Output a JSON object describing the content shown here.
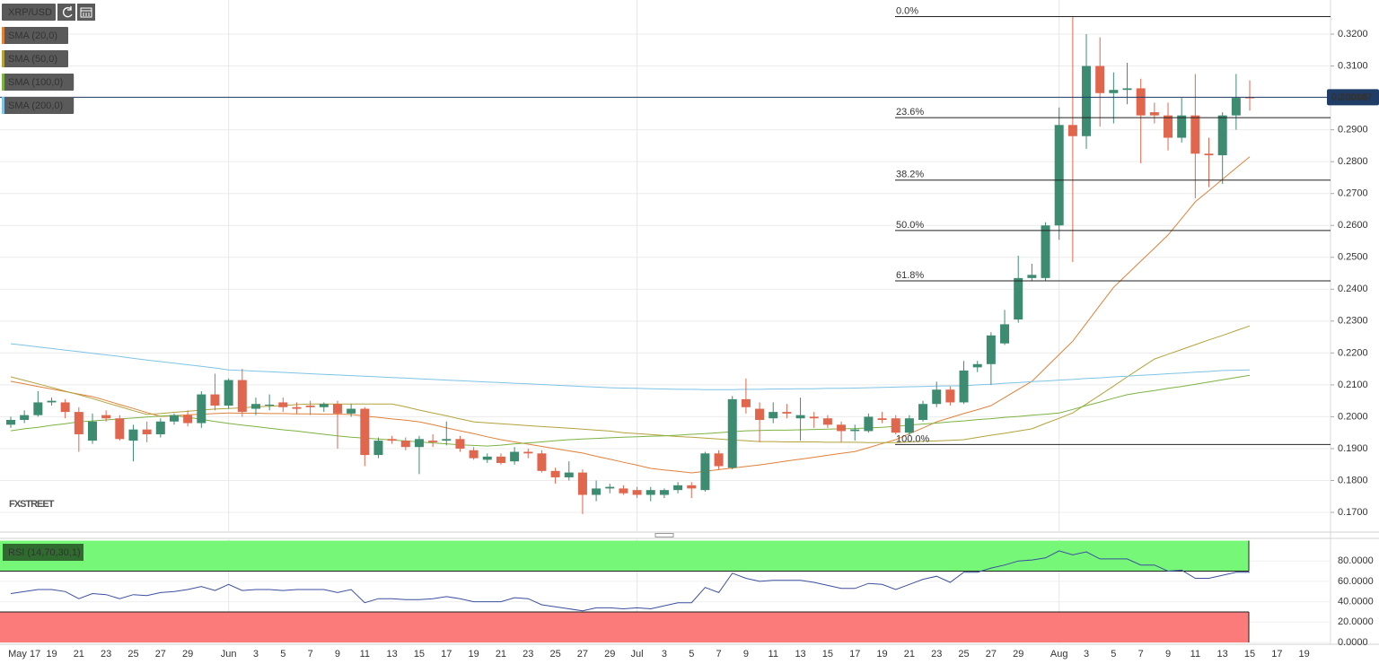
{
  "chart_data": {
    "type": "candlestick",
    "title": "XRP/USD",
    "watermark": "FXSTREET",
    "categories": [
      null,
      "May 17",
      null,
      "19",
      null,
      "21",
      null,
      "23",
      null,
      "25",
      null,
      "27",
      null,
      "29",
      null,
      null,
      "Jun",
      null,
      "3",
      null,
      "5",
      null,
      "7",
      null,
      "9",
      null,
      "11",
      null,
      "13",
      null,
      "15",
      null,
      "17",
      null,
      "19",
      null,
      "21",
      null,
      "23",
      null,
      "25",
      null,
      "27",
      null,
      "29",
      null,
      "Jul",
      null,
      "3",
      null,
      "5",
      null,
      "7",
      null,
      "9",
      null,
      "11",
      null,
      "13",
      null,
      "15",
      null,
      "17",
      null,
      "19",
      null,
      "21",
      null,
      "23",
      null,
      "25",
      null,
      "27",
      null,
      "29",
      null,
      null,
      "Aug",
      null,
      "3",
      null,
      "5",
      null,
      "7",
      null,
      "9",
      null,
      "11",
      null,
      "13",
      null,
      "15",
      null,
      "17",
      null,
      "19"
    ],
    "open": [
      0.1975,
      0.199,
      0.2005,
      0.2045,
      0.2045,
      0.2015,
      0.1925,
      0.2005,
      0.1995,
      0.1925,
      0.196,
      0.1945,
      0.1985,
      0.2005,
      0.198,
      0.207,
      0.2035,
      0.2115,
      0.2025,
      0.2035,
      0.2045,
      0.203,
      0.2035,
      0.203,
      0.204,
      0.201,
      0.2025,
      0.188,
      0.193,
      0.1925,
      0.1905,
      0.1925,
      0.1925,
      0.193,
      0.1895,
      0.1865,
      0.1875,
      0.186,
      0.189,
      0.1885,
      0.183,
      0.181,
      0.1825,
      0.1755,
      0.1775,
      0.1775,
      0.177,
      0.1755,
      0.1755,
      0.177,
      0.1785,
      0.177,
      0.1885,
      0.184,
      0.2055,
      0.2025,
      0.1995,
      0.2015,
      0.1995,
      0.2,
      0.1995,
      0.1975,
      0.1955,
      0.1955,
      0.1995,
      0.1995,
      0.195,
      0.199,
      0.204,
      0.2085,
      0.2045,
      0.2155,
      0.2165,
      0.223,
      0.2305,
      0.2435,
      0.2435,
      0.26,
      0.2915,
      0.288,
      0.31,
      0.3015,
      0.3025,
      0.303,
      0.2955,
      0.2945,
      0.2875,
      0.2945,
      0.2825,
      0.282,
      0.2945,
      0.3002,
      null,
      null,
      null,
      null
    ],
    "high": [
      0.2,
      0.202,
      0.208,
      0.206,
      0.2055,
      0.203,
      0.201,
      0.202,
      0.2005,
      0.1975,
      0.1985,
      0.1995,
      0.201,
      0.202,
      0.208,
      0.2135,
      0.212,
      0.215,
      0.206,
      0.207,
      0.206,
      0.2045,
      0.205,
      0.2045,
      0.205,
      0.204,
      0.203,
      0.1935,
      0.194,
      0.1935,
      0.194,
      0.1945,
      0.1985,
      0.194,
      0.1905,
      0.1885,
      0.1885,
      0.1905,
      0.19,
      0.1895,
      0.184,
      0.186,
      0.1835,
      0.18,
      0.179,
      0.1785,
      0.178,
      0.178,
      0.1775,
      0.1795,
      0.1795,
      0.189,
      0.1895,
      0.2065,
      0.212,
      0.2045,
      0.2045,
      0.204,
      0.206,
      0.2015,
      0.2005,
      0.1985,
      0.1975,
      0.201,
      0.2015,
      0.2005,
      0.2005,
      0.205,
      0.211,
      0.2095,
      0.2175,
      0.2175,
      0.2265,
      0.2335,
      0.2505,
      0.248,
      0.261,
      0.297,
      0.3255,
      0.32,
      0.319,
      0.308,
      0.311,
      0.306,
      0.2985,
      0.2985,
      0.3,
      0.3075,
      0.2875,
      0.2955,
      0.3075,
      0.3055,
      null,
      null,
      null,
      null
    ],
    "low": [
      0.1965,
      0.198,
      0.2,
      0.2035,
      0.1995,
      0.189,
      0.1915,
      0.1985,
      0.1925,
      0.186,
      0.192,
      0.1935,
      0.1975,
      0.197,
      0.1965,
      0.202,
      0.2025,
      0.2,
      0.2005,
      0.202,
      0.2015,
      0.201,
      0.2005,
      0.2015,
      0.19,
      0.2,
      0.1845,
      0.187,
      0.1915,
      0.1895,
      0.182,
      0.1905,
      0.191,
      0.189,
      0.1865,
      0.1855,
      0.185,
      0.185,
      0.187,
      0.1825,
      0.179,
      0.18,
      0.1695,
      0.1735,
      0.176,
      0.1755,
      0.1745,
      0.1735,
      0.1745,
      0.176,
      0.1745,
      0.1765,
      0.1835,
      0.1835,
      0.201,
      0.192,
      0.198,
      0.1995,
      0.1925,
      0.1965,
      0.1965,
      0.192,
      0.1925,
      0.195,
      0.198,
      0.1945,
      0.194,
      0.1985,
      0.203,
      0.2035,
      0.204,
      0.214,
      0.21,
      0.2225,
      0.2295,
      0.2425,
      0.2425,
      0.2555,
      0.2485,
      0.284,
      0.291,
      0.292,
      0.298,
      0.2795,
      0.292,
      0.2835,
      0.286,
      0.2685,
      0.272,
      0.273,
      0.29,
      0.296,
      null,
      null,
      null,
      null
    ],
    "close": [
      0.199,
      0.2005,
      0.2045,
      0.205,
      0.2015,
      0.1945,
      0.1985,
      0.1995,
      0.193,
      0.196,
      0.1945,
      0.1985,
      0.2005,
      0.198,
      0.207,
      0.2035,
      0.2115,
      0.2015,
      0.204,
      0.2038,
      0.203,
      0.2025,
      0.203,
      0.204,
      0.201,
      0.2025,
      0.188,
      0.1925,
      0.1925,
      0.1905,
      0.193,
      0.192,
      0.193,
      0.19,
      0.187,
      0.1875,
      0.1855,
      0.189,
      0.1885,
      0.183,
      0.181,
      0.1825,
      0.1755,
      0.1775,
      0.178,
      0.176,
      0.1755,
      0.177,
      0.177,
      0.1785,
      0.1775,
      0.1885,
      0.1845,
      0.2055,
      0.203,
      0.199,
      0.2015,
      0.201,
      0.2005,
      0.1995,
      0.1975,
      0.1955,
      0.196,
      0.2,
      0.199,
      0.195,
      0.1995,
      0.204,
      0.2085,
      0.2045,
      0.2145,
      0.2165,
      0.2255,
      0.229,
      0.2435,
      0.2445,
      0.26,
      0.2915,
      0.288,
      0.31,
      0.3015,
      0.3025,
      0.303,
      0.2945,
      0.2945,
      0.2875,
      0.2945,
      0.2825,
      0.282,
      0.2945,
      0.3,
      0.300187,
      null,
      null,
      null,
      null
    ],
    "up_color": "#3d8c72",
    "down_color": "#e0664e",
    "ylim": [
      0.1641,
      0.3307
    ],
    "yticks": [
      {
        "value": 0.17,
        "label": "0.1700"
      },
      {
        "value": 0.18,
        "label": "0.1800"
      },
      {
        "value": 0.19,
        "label": "0.1900"
      },
      {
        "value": 0.2,
        "label": "0.2000"
      },
      {
        "value": 0.21,
        "label": "0.2100"
      },
      {
        "value": 0.22,
        "label": "0.2200"
      },
      {
        "value": 0.23,
        "label": "0.2300"
      },
      {
        "value": 0.24,
        "label": "0.2400"
      },
      {
        "value": 0.25,
        "label": "0.2500"
      },
      {
        "value": 0.26,
        "label": "0.2600"
      },
      {
        "value": 0.27,
        "label": "0.2700"
      },
      {
        "value": 0.28,
        "label": "0.2800"
      },
      {
        "value": 0.29,
        "label": "0.2900"
      },
      {
        "value": 0.3,
        "label": "0.3000"
      },
      {
        "value": 0.31,
        "label": "0.3100"
      },
      {
        "value": 0.32,
        "label": "0.3200"
      }
    ],
    "grid": true,
    "price_line_color": "#1f3d66",
    "series": [
      {
        "name": "SMA (20,0)",
        "color": "#e0813a",
        "values": [
          0.2111,
          0.2103,
          0.2095,
          0.2087,
          0.2079,
          0.2071,
          0.2063,
          0.2051,
          0.2038,
          0.2026,
          0.2013,
          0.2001,
          0.2003,
          0.2006,
          0.2008,
          0.201,
          0.2012,
          0.2011,
          0.2011,
          0.201,
          0.201,
          0.2009,
          0.2009,
          0.2008,
          0.2008,
          0.2007,
          0.2002,
          0.1998,
          0.1993,
          0.1989,
          0.1984,
          0.1975,
          0.1965,
          0.1956,
          0.1947,
          0.1937,
          0.1928,
          0.1921,
          0.1914,
          0.1907,
          0.19,
          0.1893,
          0.1886,
          0.1876,
          0.1867,
          0.1857,
          0.1848,
          0.1838,
          0.1833,
          0.1829,
          0.1824,
          0.1829,
          0.1834,
          0.1839,
          0.1844,
          0.1849,
          0.1855,
          0.1861,
          0.1867,
          0.1873,
          0.1879,
          0.1885,
          0.1891,
          0.1903,
          0.1916,
          0.1928,
          0.1947,
          0.1965,
          0.1984,
          0.1997,
          0.201,
          0.2022,
          0.2035,
          0.206,
          0.2086,
          0.2111,
          0.2153,
          0.2195,
          0.2237,
          0.2293,
          0.235,
          0.2406,
          0.2447,
          0.2488,
          0.2529,
          0.257,
          0.2622,
          0.2674,
          0.2709,
          0.2745,
          0.278,
          0.2815,
          null,
          null,
          null,
          null
        ]
      },
      {
        "name": "SMA (50,0)",
        "color": "#b3a33b",
        "values": [
          0.2125,
          0.2114,
          0.2103,
          0.2092,
          0.208,
          0.2069,
          0.2057,
          0.2044,
          0.2032,
          0.2019,
          0.2007,
          0.201,
          0.2014,
          0.2017,
          0.2021,
          0.2024,
          0.2026,
          0.2028,
          0.2031,
          0.2033,
          0.2035,
          0.2038,
          0.204,
          0.204,
          0.204,
          0.204,
          0.204,
          0.204,
          0.204,
          0.2031,
          0.2021,
          0.2012,
          0.2003,
          0.1993,
          0.1984,
          0.1981,
          0.1978,
          0.1975,
          0.1972,
          0.1969,
          0.1967,
          0.1964,
          0.1961,
          0.1958,
          0.1955,
          0.195,
          0.1947,
          0.1944,
          0.1941,
          0.1938,
          0.1936,
          0.1933,
          0.193,
          0.1927,
          0.1925,
          0.1922,
          0.1922,
          0.1921,
          0.1921,
          0.1921,
          0.192,
          0.192,
          0.192,
          0.1919,
          0.1919,
          0.1919,
          0.1921,
          0.1923,
          0.1924,
          0.1926,
          0.1928,
          0.1935,
          0.1942,
          0.1948,
          0.1955,
          0.1962,
          0.1979,
          0.1995,
          0.2012,
          0.204,
          0.2068,
          0.2096,
          0.2125,
          0.2153,
          0.2181,
          0.2196,
          0.2211,
          0.2226,
          0.2241,
          0.2255,
          0.227,
          0.2285,
          null,
          null,
          null,
          null
        ]
      },
      {
        "name": "SMA (100,0)",
        "color": "#7cb342",
        "values": [
          0.1956,
          0.1962,
          0.1967,
          0.1973,
          0.1978,
          0.1984,
          0.1987,
          0.199,
          0.1993,
          0.1996,
          0.1999,
          0.2002,
          0.2004,
          0.1998,
          0.1992,
          0.1985,
          0.1979,
          0.1974,
          0.1969,
          0.1964,
          0.1959,
          0.1955,
          0.195,
          0.1945,
          0.194,
          0.1936,
          0.1933,
          0.193,
          0.1927,
          0.1924,
          0.1921,
          0.1918,
          0.1915,
          0.1912,
          0.191,
          0.1908,
          0.1911,
          0.1915,
          0.1918,
          0.1921,
          0.1925,
          0.1928,
          0.193,
          0.1932,
          0.1934,
          0.1936,
          0.1937,
          0.1939,
          0.194,
          0.1942,
          0.1945,
          0.1947,
          0.195,
          0.1953,
          0.1956,
          0.1957,
          0.1958,
          0.1958,
          0.1959,
          0.196,
          0.1961,
          0.1962,
          0.1963,
          0.1965,
          0.1967,
          0.197,
          0.1974,
          0.1977,
          0.198,
          0.1984,
          0.1987,
          0.1991,
          0.1994,
          0.1998,
          0.2001,
          0.2005,
          0.2008,
          0.2012,
          0.2023,
          0.2035,
          0.2046,
          0.2058,
          0.2069,
          0.2076,
          0.2082,
          0.2089,
          0.2095,
          0.2102,
          0.2109,
          0.2116,
          0.2123,
          0.213,
          null,
          null,
          null,
          null
        ]
      },
      {
        "name": "SMA (200,0)",
        "color": "#7ec4e4",
        "values": [
          0.2229,
          0.2224,
          0.2219,
          0.2214,
          0.2209,
          0.2204,
          0.2199,
          0.2194,
          0.2189,
          0.2183,
          0.2178,
          0.2173,
          0.2168,
          0.2163,
          0.2158,
          0.2153,
          0.2147,
          0.2145,
          0.2143,
          0.2141,
          0.2139,
          0.2137,
          0.2135,
          0.2133,
          0.2131,
          0.2129,
          0.2127,
          0.2125,
          0.2123,
          0.2121,
          0.2119,
          0.2117,
          0.2115,
          0.2113,
          0.2111,
          0.2109,
          0.2107,
          0.2105,
          0.2103,
          0.2101,
          0.2099,
          0.2097,
          0.2095,
          0.2093,
          0.2091,
          0.209,
          0.2089,
          0.2088,
          0.2087,
          0.2086,
          0.2086,
          0.2085,
          0.2085,
          0.2085,
          0.2086,
          0.2086,
          0.2087,
          0.2087,
          0.2088,
          0.2088,
          0.2089,
          0.2089,
          0.209,
          0.2091,
          0.2092,
          0.2093,
          0.2094,
          0.2095,
          0.2096,
          0.2097,
          0.2097,
          0.21,
          0.2102,
          0.2105,
          0.2107,
          0.211,
          0.2112,
          0.2115,
          0.2117,
          0.212,
          0.2122,
          0.2125,
          0.2127,
          0.213,
          0.2132,
          0.2135,
          0.2137,
          0.214,
          0.2142,
          0.2145,
          0.2146,
          0.2147,
          null,
          null,
          null,
          null
        ]
      }
    ],
    "fibonacci": [
      {
        "label": "0.0%",
        "value": 0.3255
      },
      {
        "label": "23.6%",
        "value": 0.2938
      },
      {
        "label": "38.2%",
        "value": 0.2742
      },
      {
        "label": "50.0%",
        "value": 0.2584
      },
      {
        "label": "61.8%",
        "value": 0.2426
      },
      {
        "label": "100.0%",
        "value": 0.1913
      }
    ],
    "indicator": {
      "type": "line",
      "name": "RSI (14,70,30,1)",
      "color": "#3b4fa0",
      "values": [
        48,
        50,
        52,
        52,
        50,
        43,
        48,
        47,
        43,
        47,
        46,
        49,
        50,
        52,
        55,
        51,
        57,
        51,
        52,
        52,
        51,
        52,
        52,
        52,
        49,
        52,
        39,
        43,
        43,
        42,
        42,
        43,
        45,
        43,
        40,
        40,
        40,
        44,
        43,
        37,
        35,
        33,
        31,
        34,
        34,
        33,
        34,
        33,
        36,
        39,
        39,
        54,
        49,
        68,
        63,
        60,
        61,
        61,
        61,
        59,
        56,
        53,
        53,
        58,
        57,
        52,
        57,
        62,
        65,
        59,
        69,
        69,
        73,
        76,
        80,
        81,
        83,
        90,
        86,
        89,
        82,
        82,
        82,
        76,
        76,
        70,
        71,
        63,
        63,
        66,
        69,
        69,
        null,
        null,
        null,
        null
      ],
      "ylim": [
        0,
        100
      ],
      "yticks": [
        {
          "value": 0,
          "label": "0.0000"
        },
        {
          "value": 20,
          "label": "20.0000"
        },
        {
          "value": 40,
          "label": "40.0000"
        },
        {
          "value": 60,
          "label": "60.0000"
        },
        {
          "value": 80,
          "label": "80.0000"
        }
      ],
      "overbought": 70,
      "oversold": 30,
      "overbought_color": "#77f777",
      "oversold_color": "#fb7b7b"
    }
  }
}
